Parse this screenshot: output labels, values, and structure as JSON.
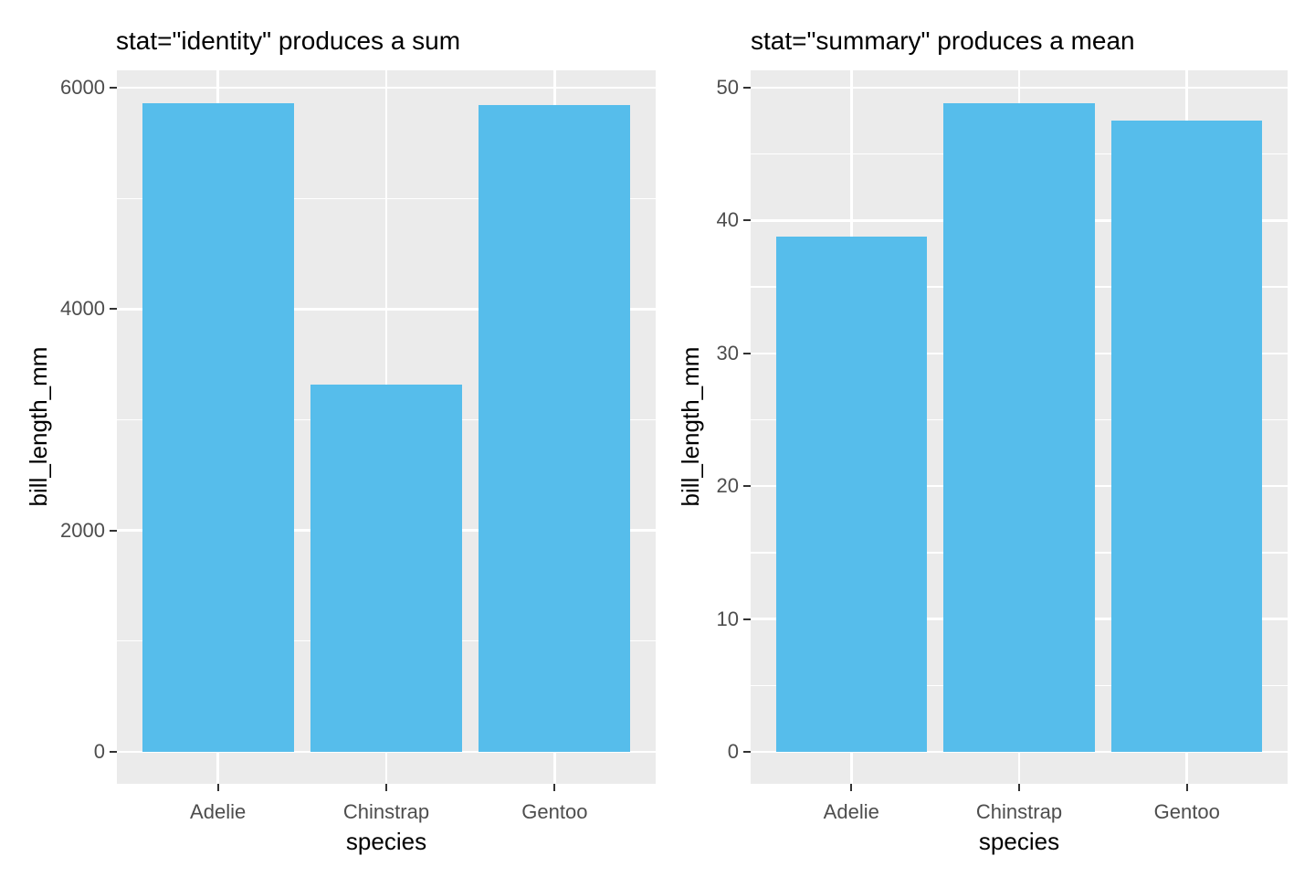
{
  "figure": {
    "background": "#FFFFFF",
    "font_color_title": "#000000",
    "font_color_ticks": "#4D4D4D"
  },
  "chart_data": [
    {
      "type": "bar",
      "title": "stat=\"identity\" produces a sum",
      "xlabel": "species",
      "ylabel": "bill_length_mm",
      "categories": [
        "Adelie",
        "Chinstrap",
        "Gentoo"
      ],
      "values": [
        5857.5,
        3320.7,
        5843.0
      ],
      "ylim": [
        0,
        6150
      ],
      "yticks": [
        0,
        2000,
        4000,
        6000
      ],
      "ytick_labels": [
        "0",
        "2000",
        "4000",
        "6000"
      ],
      "yticks_minor": [
        1000,
        3000,
        5000
      ],
      "grid": true,
      "legend": false,
      "bar_color": "#56BDEB",
      "panel_bg": "#EBEBEB",
      "grid_color": "#FFFFFF",
      "tick_label_color": "#4D4D4D",
      "tick_mark_color": "#333333"
    },
    {
      "type": "bar",
      "title": "stat=\"summary\" produces a mean",
      "xlabel": "species",
      "ylabel": "bill_length_mm",
      "categories": [
        "Adelie",
        "Chinstrap",
        "Gentoo"
      ],
      "values": [
        38.8,
        48.8,
        47.5
      ],
      "ylim": [
        0,
        51.3
      ],
      "yticks": [
        0,
        10,
        20,
        30,
        40,
        50
      ],
      "ytick_labels": [
        "0",
        "10",
        "20",
        "30",
        "40",
        "50"
      ],
      "yticks_minor": [
        5,
        15,
        25,
        35,
        45
      ],
      "grid": true,
      "legend": false,
      "bar_color": "#56BDEB",
      "panel_bg": "#EBEBEB",
      "grid_color": "#FFFFFF",
      "tick_label_color": "#4D4D4D",
      "tick_mark_color": "#333333"
    }
  ]
}
